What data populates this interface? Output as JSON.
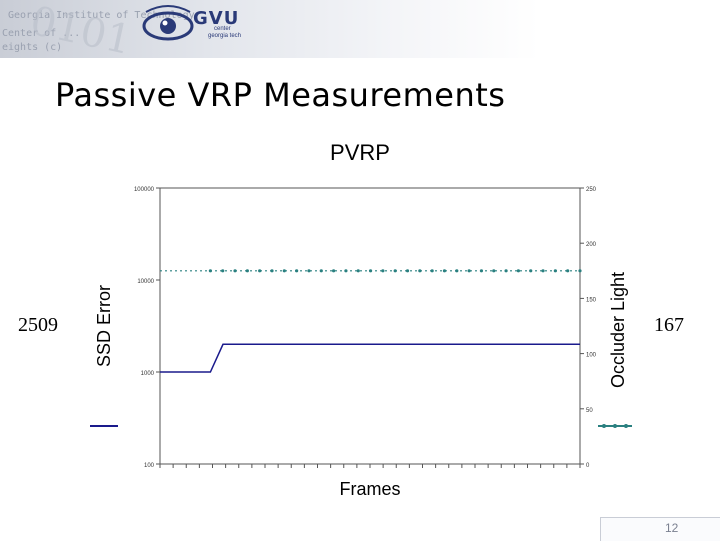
{
  "header": {
    "logo_text": "GVU",
    "logo_sub1": "center",
    "logo_sub2": "georgia tech",
    "watermark_lines": [
      "Georgia Institute of Technology",
      "Center of ...",
      "eights (c)"
    ]
  },
  "slide": {
    "title": "Passive VRP Measurements",
    "left_value": "2509",
    "right_value": "167",
    "page_number": "12"
  },
  "chart_data": {
    "type": "line",
    "title": "PVRP",
    "xlabel": "Frames",
    "ylabel": "SSD Error",
    "y2label": "Occluder Light",
    "y_scale": "log",
    "ylim": [
      100,
      100000
    ],
    "y_ticks": [
      "100000",
      "10000",
      "1000",
      "100"
    ],
    "y2lim": [
      0,
      250
    ],
    "y2_ticks": [
      "250",
      "200",
      "150",
      "100",
      "50",
      "0"
    ],
    "grid": false,
    "series": [
      {
        "axis": "left",
        "color": "#1a1a8c",
        "points": [
          [
            0,
            1000
          ],
          [
            12,
            1000
          ],
          [
            15,
            2000
          ],
          [
            100,
            2000
          ]
        ]
      },
      {
        "axis": "right",
        "color": "#2a8080",
        "markers": true,
        "points": [
          [
            0,
            175
          ],
          [
            100,
            175
          ]
        ]
      }
    ]
  },
  "colors": {
    "banner_text": "#2a3a78",
    "ssd_line": "#1a1a8c",
    "light_line": "#2a8080"
  }
}
